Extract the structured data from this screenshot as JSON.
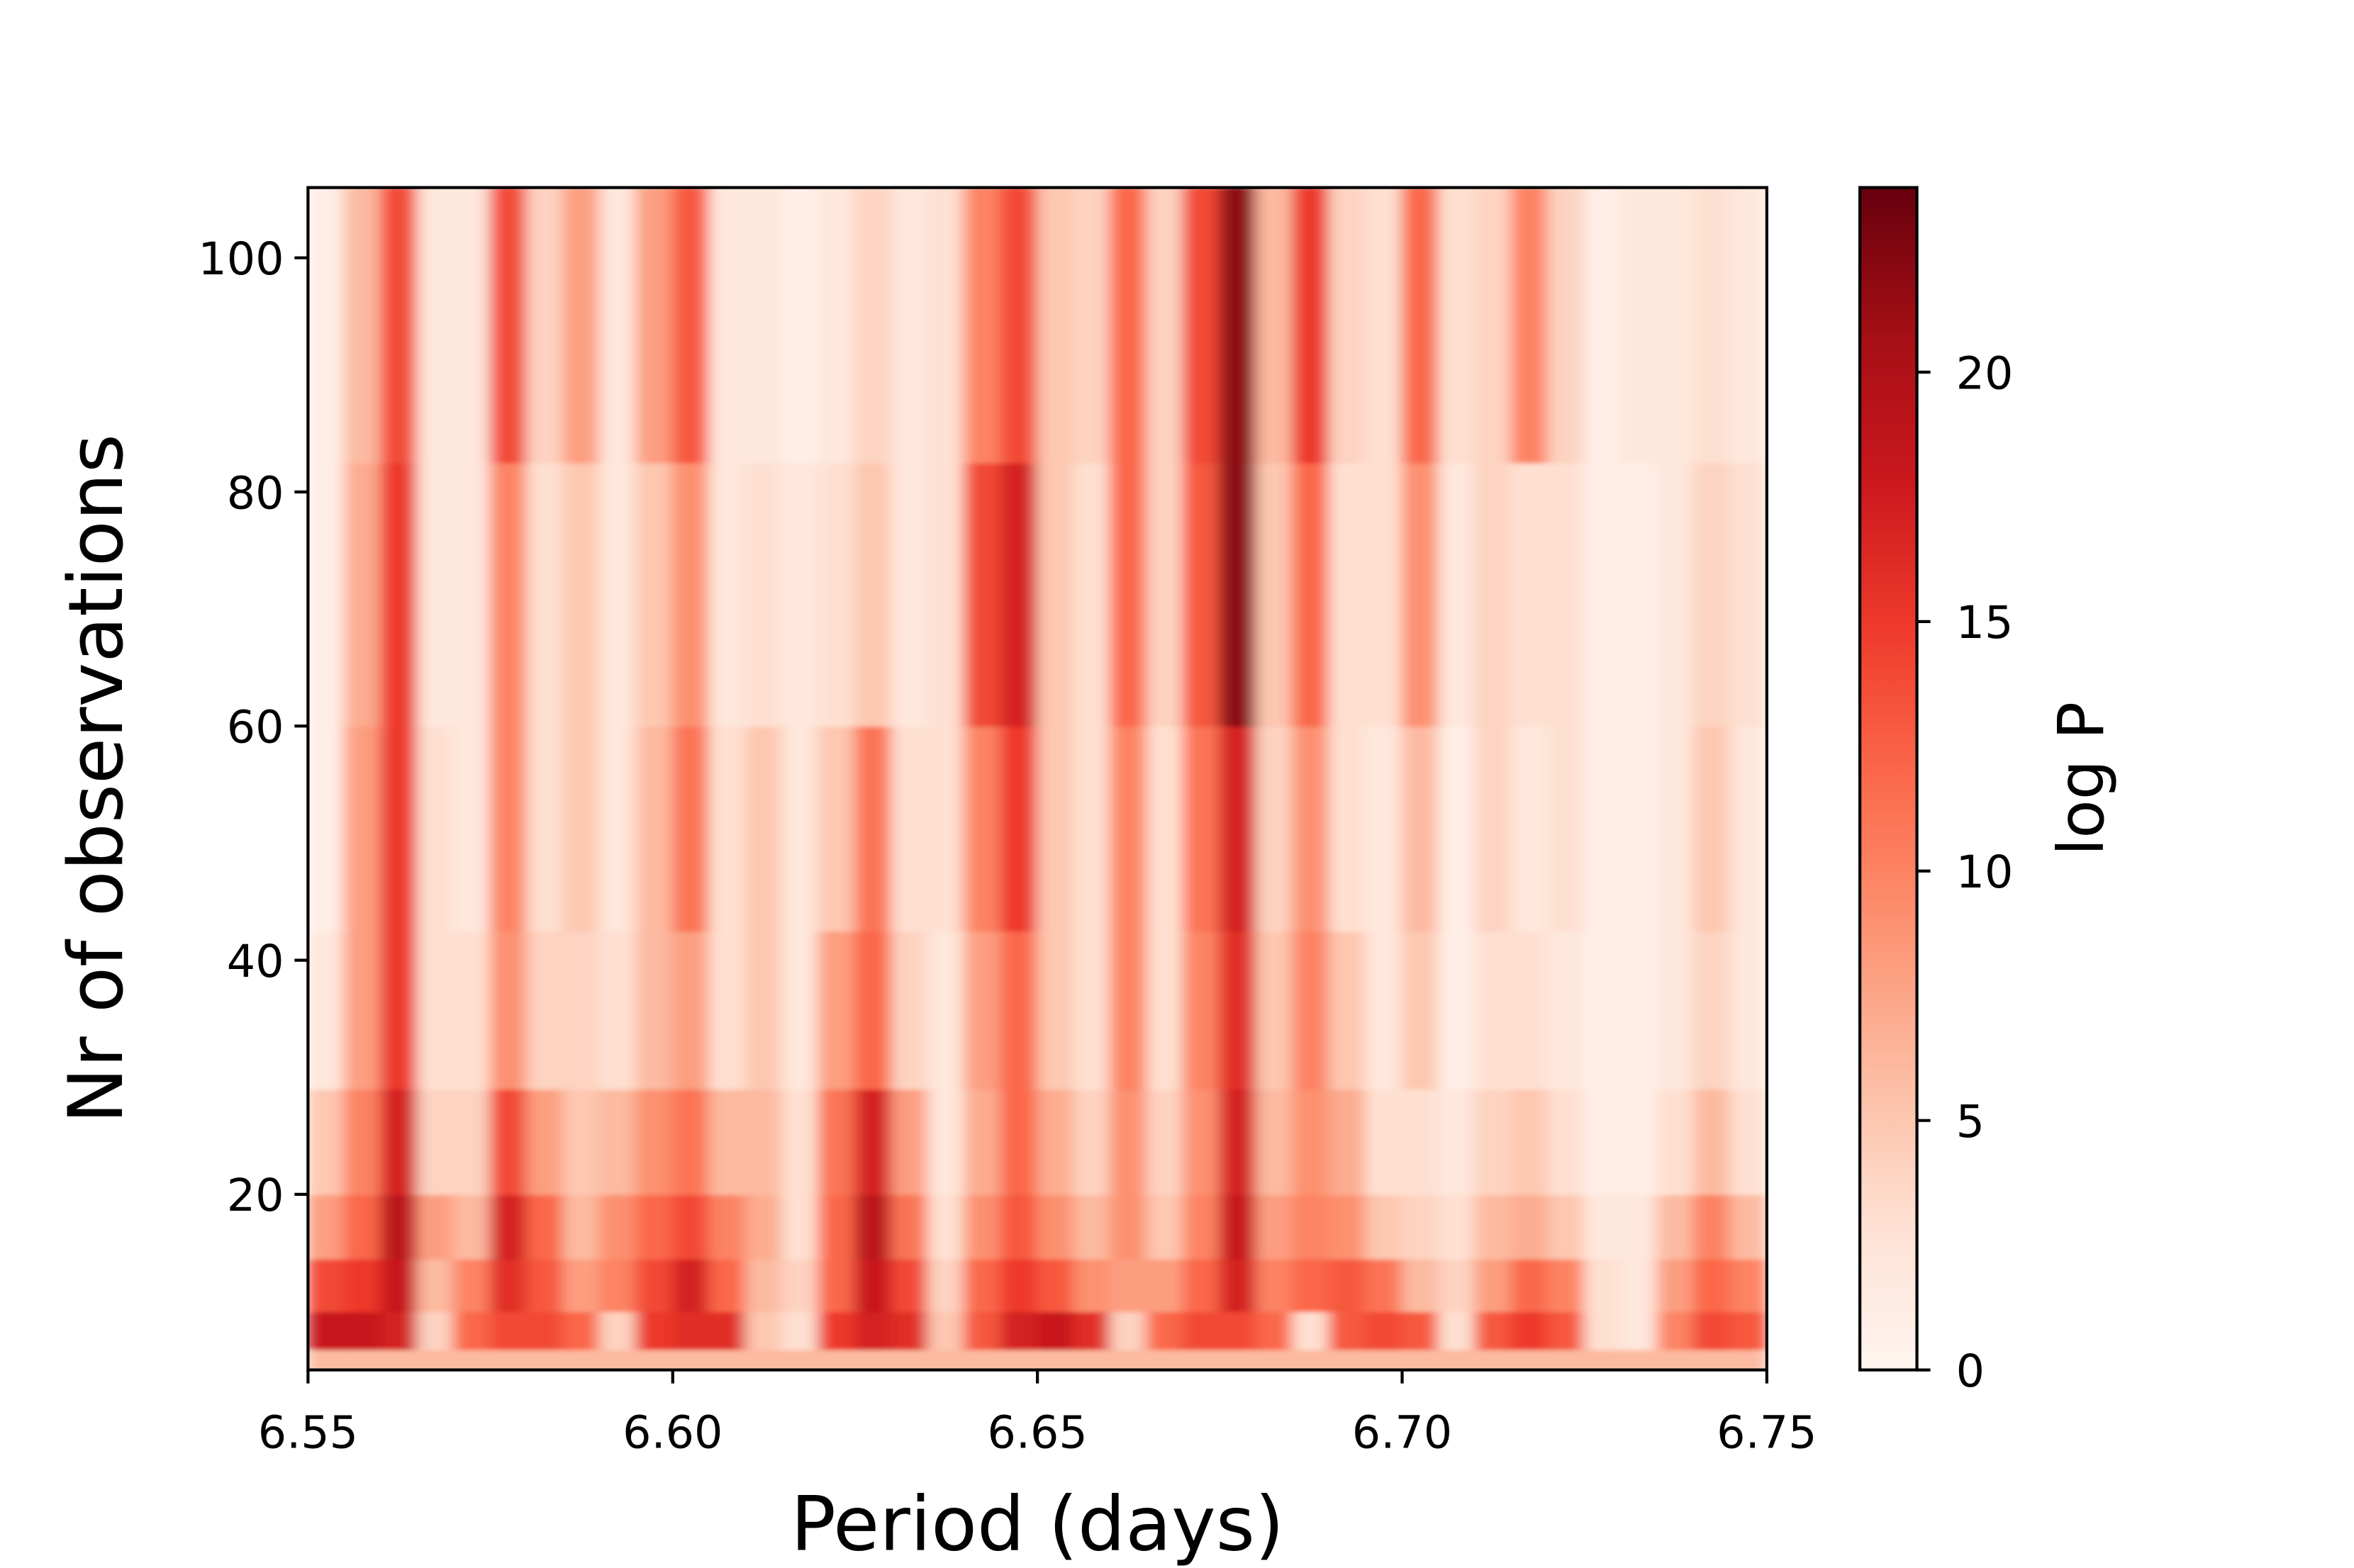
{
  "chart_data": {
    "type": "heatmap",
    "xlabel": "Period (days)",
    "ylabel": "Nr of observations",
    "colorbar_label": "log P",
    "xlim": [
      6.55,
      6.75
    ],
    "ylim": [
      5,
      106
    ],
    "clim": [
      0,
      23.7
    ],
    "xticks": [
      6.55,
      {
        "value": 6.6,
        "label": "6.60"
      },
      6.65,
      {
        "value": 6.7,
        "label": "6.70"
      },
      6.75
    ],
    "yticks": [
      20,
      40,
      60,
      80,
      100
    ],
    "cticks": [
      0,
      5,
      10,
      15,
      20
    ],
    "colormap": [
      "#fff5f0",
      "#fee0d2",
      "#fcbba1",
      "#fc9272",
      "#fb6a4a",
      "#ef3b2c",
      "#cb181d",
      "#a50f15",
      "#67000d"
    ],
    "x": [
      6.5525,
      6.5575,
      6.5625,
      6.5675,
      6.5725,
      6.5775,
      6.5825,
      6.5875,
      6.5925,
      6.5975,
      6.6025,
      6.6075,
      6.6125,
      6.6175,
      6.6225,
      6.6275,
      6.6325,
      6.6375,
      6.6425,
      6.6475,
      6.6525,
      6.6575,
      6.6625,
      6.6675,
      6.6725,
      6.6775,
      6.6825,
      6.6875,
      6.6925,
      6.6975,
      6.7025,
      6.7075,
      6.7125,
      6.7175,
      6.7225,
      6.7275,
      6.7325,
      6.7375,
      6.7425,
      6.7475
    ],
    "y": [
      5.5,
      8,
      12,
      17,
      23,
      35,
      50,
      70,
      95
    ],
    "z": [
      [
        6,
        6,
        6,
        6,
        6,
        6,
        6,
        6,
        6,
        6,
        6,
        6,
        6,
        6,
        6,
        6,
        6,
        6,
        6,
        6,
        6,
        6,
        6,
        6,
        6,
        6,
        6,
        6,
        6,
        6,
        6,
        6,
        6,
        6,
        6,
        6,
        6,
        6,
        6,
        6
      ],
      [
        18,
        18,
        17,
        4,
        12,
        14,
        14,
        12,
        4,
        15,
        16,
        16,
        5,
        3,
        15,
        17,
        16,
        5,
        13,
        17,
        18,
        16,
        4,
        12,
        14,
        14,
        12,
        3,
        13,
        14,
        13,
        3,
        13,
        15,
        13,
        3,
        2,
        10,
        14,
        13
      ],
      [
        14,
        15,
        18,
        6,
        10,
        16,
        13,
        8,
        10,
        14,
        17,
        12,
        6,
        4,
        12,
        18,
        14,
        4,
        12,
        15,
        13,
        9,
        8,
        8,
        12,
        17,
        10,
        12,
        13,
        11,
        6,
        4,
        8,
        12,
        10,
        3,
        2,
        8,
        12,
        10
      ],
      [
        8,
        12,
        19,
        8,
        6,
        17,
        12,
        6,
        9,
        12,
        14,
        10,
        7,
        3,
        12,
        19,
        11,
        3,
        9,
        13,
        9,
        6,
        9,
        5,
        10,
        18,
        8,
        10,
        9,
        5,
        4,
        3,
        6,
        7,
        5,
        2,
        2,
        6,
        10,
        6
      ],
      [
        5,
        10,
        17,
        4,
        4,
        14,
        8,
        5,
        6,
        9,
        11,
        6,
        6,
        3,
        11,
        17,
        8,
        2,
        7,
        12,
        7,
        4,
        9,
        4,
        9,
        17,
        6,
        9,
        7,
        3,
        3,
        2,
        4,
        5,
        3,
        1,
        1,
        3,
        6,
        3
      ],
      [
        2,
        8,
        15,
        3,
        3,
        9,
        4,
        4,
        3,
        6,
        8,
        3,
        5,
        2,
        8,
        12,
        4,
        2,
        8,
        12,
        5,
        3,
        10,
        3,
        10,
        16,
        5,
        10,
        5,
        2,
        5,
        1,
        3,
        3,
        2,
        1,
        1,
        2,
        4,
        2
      ],
      [
        1,
        8,
        15,
        3,
        2,
        10,
        3,
        5,
        2,
        6,
        11,
        3,
        5,
        2,
        5,
        11,
        3,
        3,
        10,
        15,
        5,
        3,
        10,
        3,
        11,
        17,
        4,
        9,
        3,
        2,
        6,
        1,
        4,
        2,
        3,
        1,
        1,
        2,
        5,
        2
      ],
      [
        1,
        7,
        15,
        2,
        2,
        10,
        3,
        5,
        2,
        5,
        9,
        2,
        3,
        2,
        3,
        5,
        2,
        3,
        14,
        17,
        5,
        3,
        12,
        4,
        13,
        22,
        5,
        12,
        3,
        3,
        9,
        2,
        4,
        3,
        3,
        1,
        1,
        2,
        4,
        3
      ],
      [
        1,
        6,
        14,
        2,
        2,
        14,
        4,
        8,
        2,
        8,
        13,
        2,
        2,
        1,
        2,
        4,
        2,
        3,
        10,
        14,
        5,
        4,
        12,
        4,
        14,
        22,
        6,
        15,
        4,
        3,
        12,
        3,
        4,
        10,
        4,
        1,
        2,
        2,
        3,
        2
      ]
    ]
  }
}
